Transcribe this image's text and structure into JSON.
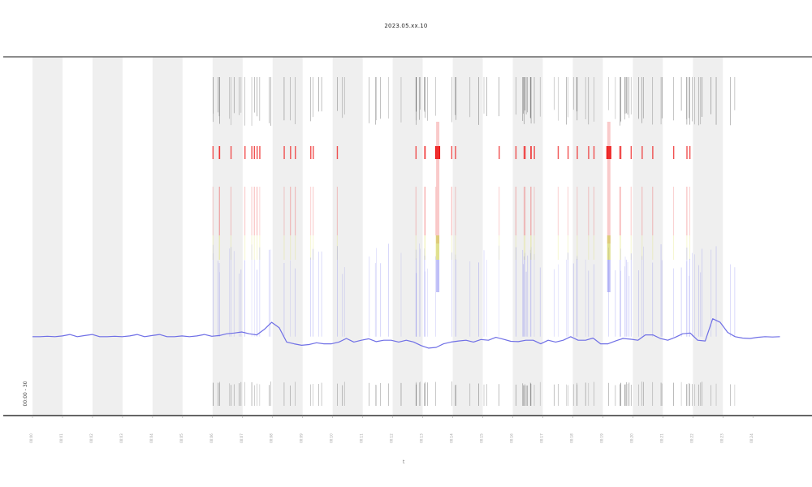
{
  "chart_data": {
    "type": "line",
    "title": "2023.05.xx.10",
    "xlabel": "t",
    "ylabel": "",
    "legend_text": "00:00 - 30",
    "x_ticks": [
      "00:00",
      "00:01",
      "00:02",
      "00:03",
      "00:04",
      "00:05",
      "00:06",
      "00:07",
      "00:08",
      "00:09",
      "00:10",
      "00:11",
      "00:12",
      "00:13",
      "00:14",
      "00:15",
      "00:16",
      "00:17",
      "00:18",
      "00:19",
      "00:20",
      "00:21",
      "00:22",
      "00:23",
      "00:24"
    ],
    "xlim": [
      0,
      24.9
    ],
    "ylim": [
      0,
      1
    ],
    "grid": false,
    "shaded_bands": [
      [
        0,
        1
      ],
      [
        2,
        3
      ],
      [
        4,
        5
      ],
      [
        6,
        7
      ],
      [
        8,
        9
      ],
      [
        10,
        11
      ],
      [
        12,
        13
      ],
      [
        14,
        15
      ],
      [
        16,
        17
      ],
      [
        18,
        19
      ],
      [
        20,
        21
      ],
      [
        22,
        23
      ]
    ],
    "activity_regions": [
      [
        6,
        23.5
      ]
    ],
    "highlight_periods": [
      13.5,
      19.2
    ],
    "series": [
      {
        "values": [
          0.22,
          0.22,
          0.221,
          0.22,
          0.222,
          0.226,
          0.22,
          0.223,
          0.226,
          0.22,
          0.22,
          0.221,
          0.22,
          0.222,
          0.226,
          0.22,
          0.223,
          0.226,
          0.22,
          0.22,
          0.222,
          0.22,
          0.222,
          0.226,
          0.221,
          0.223,
          0.228,
          0.23,
          0.233,
          0.228,
          0.225,
          0.24,
          0.26,
          0.245,
          0.205,
          0.2,
          0.196,
          0.198,
          0.203,
          0.2,
          0.2,
          0.205,
          0.215,
          0.205,
          0.21,
          0.214,
          0.206,
          0.21,
          0.21,
          0.205,
          0.21,
          0.205,
          0.195,
          0.188,
          0.19,
          0.2,
          0.205,
          0.208,
          0.21,
          0.205,
          0.212,
          0.21,
          0.218,
          0.213,
          0.207,
          0.206,
          0.21,
          0.21,
          0.2,
          0.21,
          0.205,
          0.21,
          0.22,
          0.21,
          0.21,
          0.216,
          0.2,
          0.2,
          0.208,
          0.215,
          0.213,
          0.21,
          0.225,
          0.225,
          0.215,
          0.21,
          0.218,
          0.228,
          0.23,
          0.21,
          0.208,
          0.27,
          0.26,
          0.232,
          0.22,
          0.216,
          0.215,
          0.218,
          0.22,
          0.219,
          0.22
        ]
      }
    ]
  }
}
